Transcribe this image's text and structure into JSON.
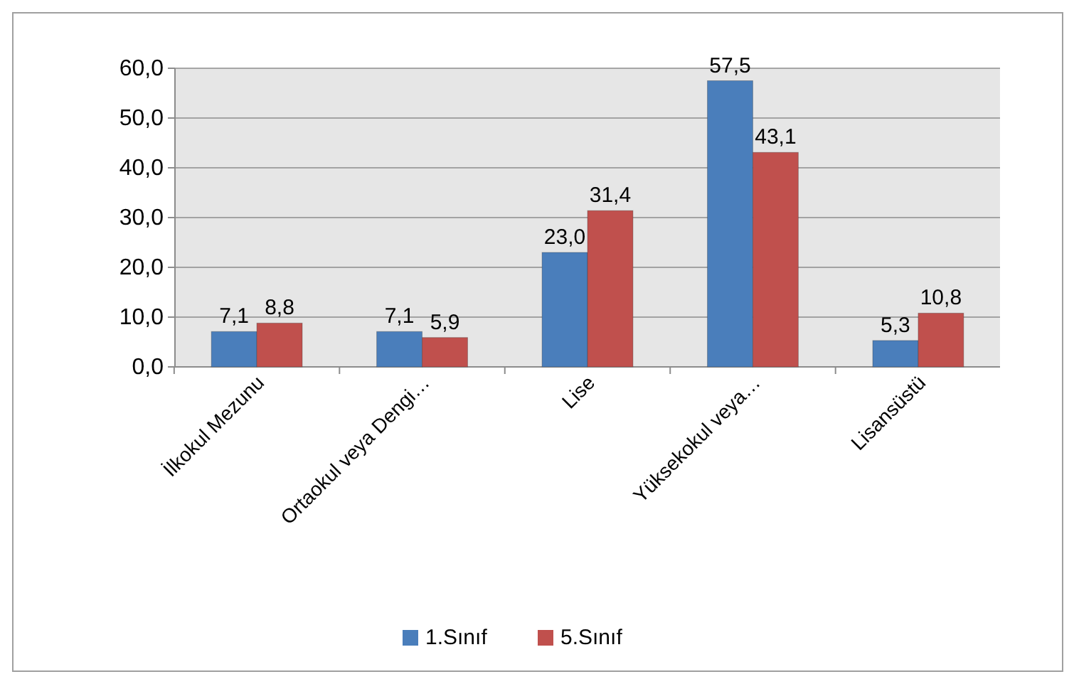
{
  "chart_data": {
    "type": "bar",
    "categories": [
      "İlkokul Mezunu",
      "Ortaokul veya Dengi…",
      "Lise",
      "Yüksekokul veya…",
      "Lisansüstü"
    ],
    "series": [
      {
        "name": "1.Sınıf",
        "color": "#4a7ebb",
        "values": [
          7.1,
          7.1,
          23.0,
          57.5,
          5.3
        ],
        "value_labels": [
          "7,1",
          "7,1",
          "23,0",
          "57,5",
          "5,3"
        ]
      },
      {
        "name": "5.Sınıf",
        "color": "#c0504d",
        "values": [
          8.8,
          5.9,
          31.4,
          43.1,
          10.8
        ],
        "value_labels": [
          "8,8",
          "5,9",
          "31,4",
          "43,1",
          "10,8"
        ]
      }
    ],
    "ylim": [
      0,
      60
    ],
    "yticks": [
      {
        "value": 0,
        "label": "0,0"
      },
      {
        "value": 10,
        "label": "10,0"
      },
      {
        "value": 20,
        "label": "20,0"
      },
      {
        "value": 30,
        "label": "30,0"
      },
      {
        "value": 40,
        "label": "40,0"
      },
      {
        "value": 50,
        "label": "50,0"
      },
      {
        "value": 60,
        "label": "60,0"
      }
    ],
    "grid": "y",
    "legend": "bottom"
  }
}
